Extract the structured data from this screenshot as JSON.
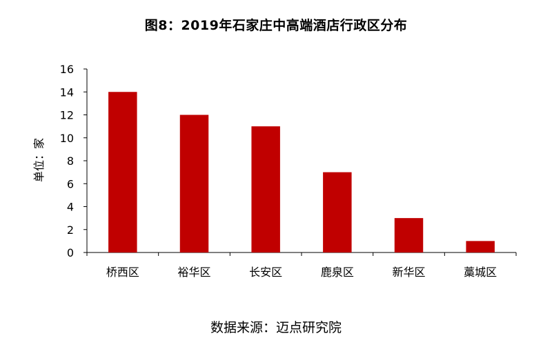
{
  "chart_data": {
    "type": "bar",
    "title": "图8：2019年石家庄中高端酒店行政区分布",
    "ylabel": "单位：家",
    "xlabel": "",
    "categories": [
      "桥西区",
      "裕华区",
      "长安区",
      "鹿泉区",
      "新华区",
      "藁城区"
    ],
    "values": [
      14,
      12,
      11,
      7,
      3,
      1
    ],
    "ylim": [
      0,
      16
    ],
    "yticks": [
      "0",
      "2",
      "4",
      "6",
      "8",
      "10",
      "12",
      "14",
      "16"
    ],
    "grid": false,
    "bar_color": "#c00000",
    "source": "数据来源：迈点研究院"
  }
}
